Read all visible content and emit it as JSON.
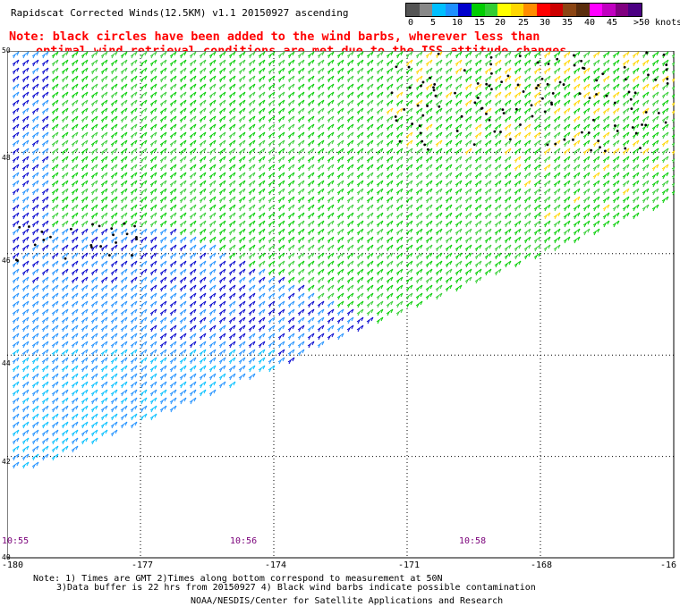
{
  "title": "Rapidscat Corrected Winds(12.5KM) v1.1 20150927 ascending",
  "note": {
    "line1": "Note: black circles have been added to the wind barbs, wherever less than",
    "line2": "optimal wind retrieval conditions are met due to the ISS attitude changes."
  },
  "colorbar": {
    "colors": [
      "#555555",
      "#888888",
      "#00bfff",
      "#1e90ff",
      "#0000cd",
      "#00cd00",
      "#32cd32",
      "#ffff00",
      "#ffd700",
      "#ff8c00",
      "#ff0000",
      "#cd0000",
      "#8b4513",
      "#5a2d0c",
      "#ff00ff",
      "#c000c0",
      "#800080",
      "#4b0082"
    ],
    "labels": [
      "0",
      "5",
      "10",
      "15",
      "20",
      "25",
      "30",
      "35",
      "40",
      "45",
      ">50 knots"
    ]
  },
  "map": {
    "lon_range": [
      -180,
      -165
    ],
    "lat_range": [
      40,
      50
    ],
    "lon_ticks": [
      "-180",
      "-177",
      "-174",
      "-171",
      "-168",
      "-16"
    ],
    "lat_ticks": [
      "50",
      "48",
      "46",
      "44",
      "42",
      "40"
    ],
    "grid": true,
    "times": [
      "10:55",
      "10:56",
      "10:58"
    ],
    "barb_colors": {
      "dark_blue": "#0000cd",
      "light_blue": "#1e90ff",
      "cyan": "#00bfff",
      "green": "#00cd00",
      "light_green": "#32cd32",
      "yellow": "#ffd700",
      "orange": "#ff8c00",
      "black": "#000000"
    }
  },
  "footer": {
    "line1": "Note: 1) Times are GMT 2)Times along bottom correspond to measurement at 50N",
    "line2": "3)Data buffer is 22 hrs from 20150927 4) Black wind barbs indicate possible contamination",
    "line3": "NOAA/NESDIS/Center for Satellite Applications and Research"
  }
}
